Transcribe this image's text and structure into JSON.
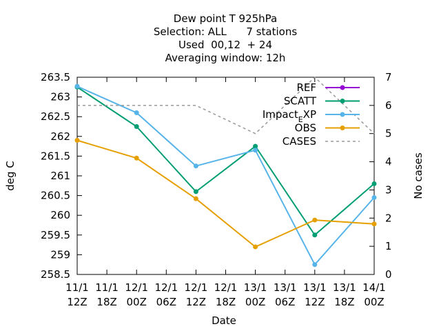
{
  "chart_data": {
    "type": "line",
    "title_lines": [
      "Dew point T 925hPa",
      "Selection: ALL      7 stations",
      "Used  00,12  + 24",
      "Averaging window: 12h"
    ],
    "xlabel": "Date",
    "ylabel": "deg C",
    "y2label": "No cases",
    "x_ticks": [
      [
        "11/1",
        "12Z"
      ],
      [
        "11/1",
        "18Z"
      ],
      [
        "12/1",
        "00Z"
      ],
      [
        "12/1",
        "06Z"
      ],
      [
        "12/1",
        "12Z"
      ],
      [
        "12/1",
        "18Z"
      ],
      [
        "13/1",
        "00Z"
      ],
      [
        "13/1",
        "06Z"
      ],
      [
        "13/1",
        "12Z"
      ],
      [
        "13/1",
        "18Z"
      ],
      [
        "14/1",
        "00Z"
      ]
    ],
    "x_index_of_points": [
      0,
      2,
      4,
      6,
      8,
      10
    ],
    "y_ticks": [
      "258.5",
      "259",
      "259.5",
      "260",
      "260.5",
      "261",
      "261.5",
      "262",
      "262.5",
      "263",
      "263.5"
    ],
    "ylim": [
      258.5,
      263.5
    ],
    "y2_ticks": [
      "0",
      "1",
      "2",
      "3",
      "4",
      "5",
      "6",
      "7"
    ],
    "y2lim": [
      0,
      7
    ],
    "legend_position": "top-right",
    "series": [
      {
        "name": "REF",
        "color": "#9400d3",
        "axis": "y",
        "marker": "point",
        "values": []
      },
      {
        "name": "SCATT",
        "color": "#009e73",
        "axis": "y",
        "marker": "point",
        "values": [
          263.25,
          262.25,
          260.6,
          261.75,
          259.5,
          260.8
        ]
      },
      {
        "name": "Impact_EXP",
        "color": "#56b4e9",
        "axis": "y",
        "marker": "point",
        "values": [
          263.27,
          262.6,
          261.25,
          261.65,
          258.75,
          260.45
        ]
      },
      {
        "name": "OBS",
        "color": "#e69f00",
        "axis": "y",
        "marker": "point",
        "values": [
          261.9,
          261.45,
          260.42,
          259.2,
          259.88,
          259.78
        ]
      },
      {
        "name": "CASES",
        "color": "#999999",
        "axis": "y2",
        "marker": "none",
        "dash": true,
        "values": [
          6,
          6,
          6,
          5,
          7,
          5
        ]
      }
    ]
  }
}
